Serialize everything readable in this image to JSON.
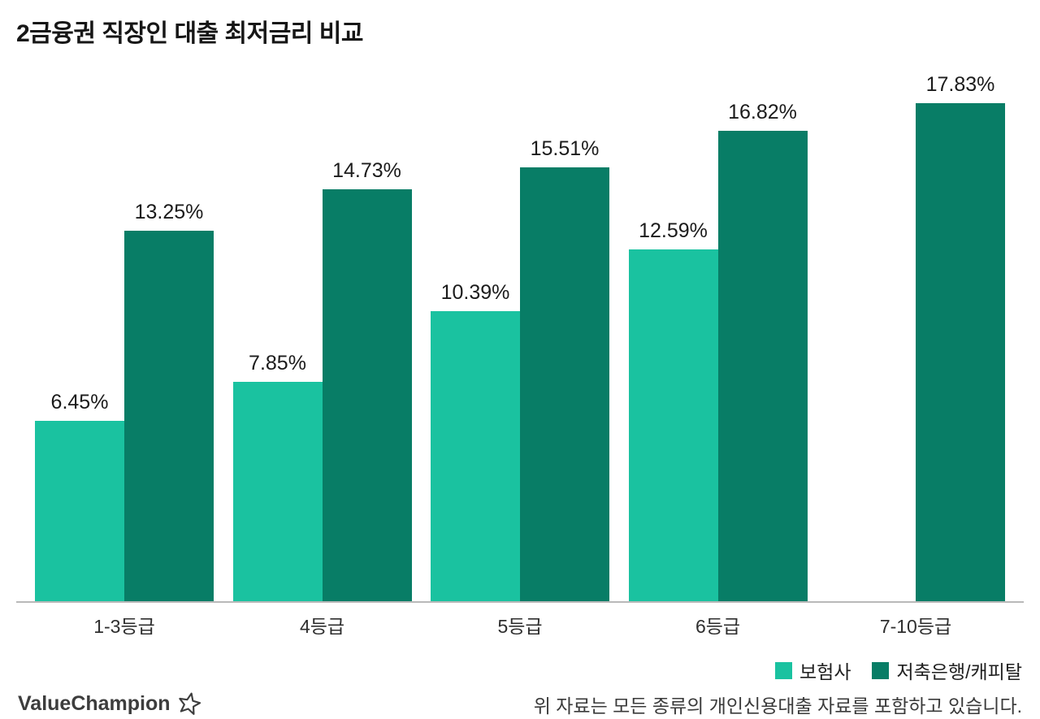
{
  "title": "2금융권 직장인 대출 최저금리 비교",
  "chart_data": {
    "type": "bar",
    "title": "2금융권 직장인 대출 최저금리 비교",
    "categories": [
      "1-3등급",
      "4등급",
      "5등급",
      "6등급",
      "7-10등급"
    ],
    "series": [
      {
        "name": "보험사",
        "color": "#1ac2a0",
        "values": [
          6.45,
          7.85,
          10.39,
          12.59,
          null
        ]
      },
      {
        "name": "저축은행/캐피탈",
        "color": "#087d66",
        "values": [
          13.25,
          14.73,
          15.51,
          16.82,
          17.83
        ]
      }
    ],
    "value_label_format": "percent_two_decimals",
    "xlabel": "",
    "ylabel": "",
    "ylim": [
      0,
      18.6
    ],
    "grid": false,
    "legend_position": "bottom-right"
  },
  "legend": {
    "items": [
      {
        "label": "보험사",
        "color": "#1ac2a0"
      },
      {
        "label": "저축은행/캐피탈",
        "color": "#087d66"
      }
    ]
  },
  "footer": {
    "brand": "ValueChampion",
    "brand_icon": "star-icon",
    "note": "위 자료는 모든 종류의 개인신용대출 자료를 포함하고 있습니다."
  }
}
